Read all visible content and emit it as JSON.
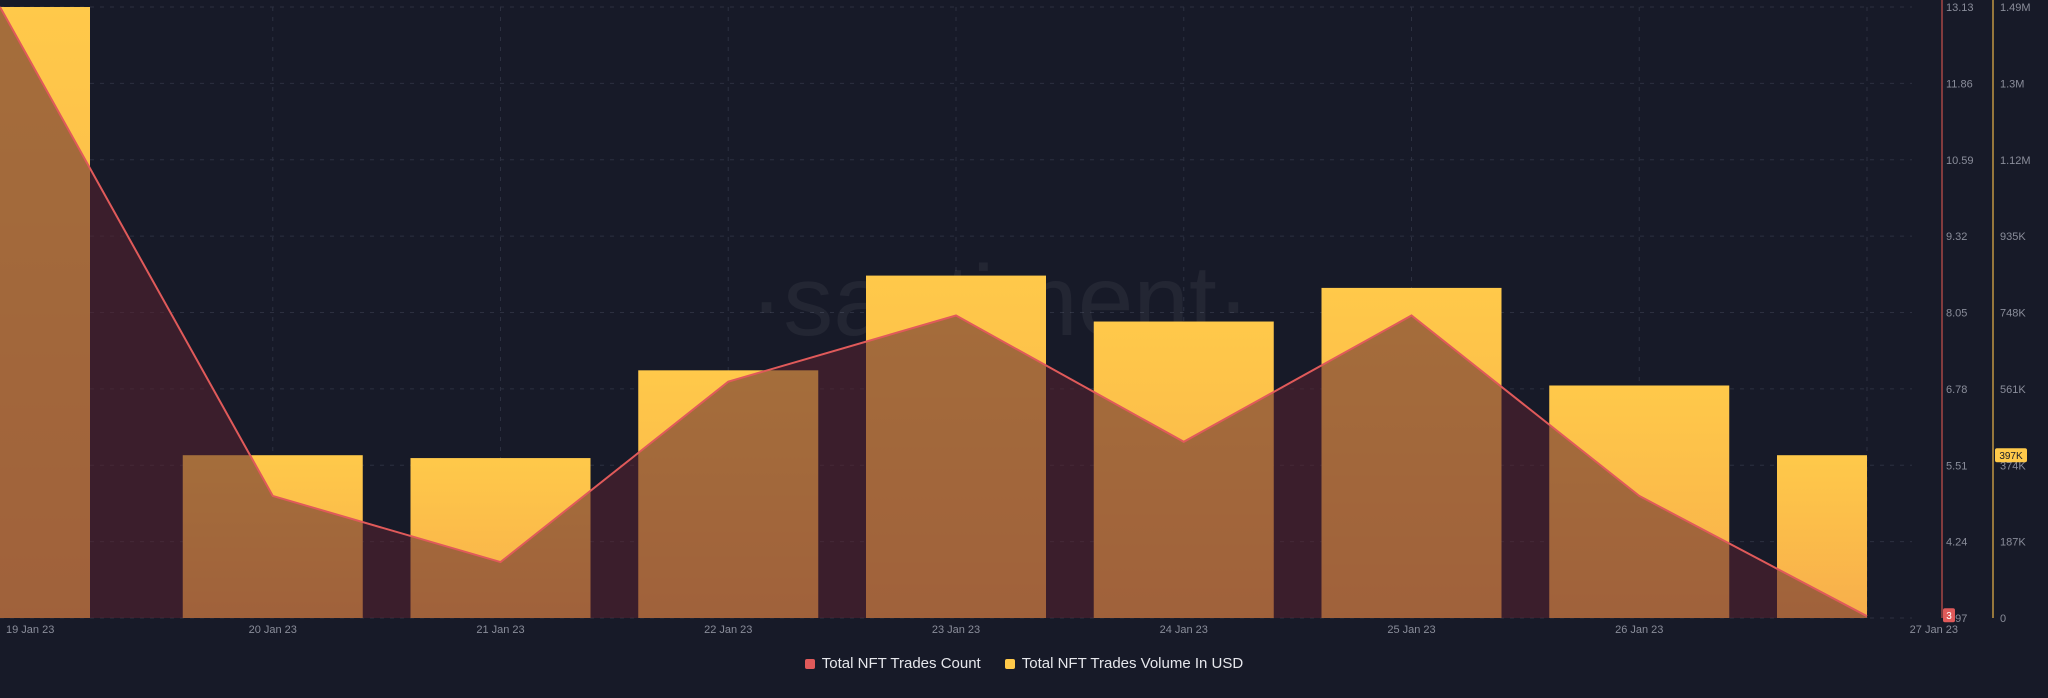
{
  "brand": {
    "watermark": "·santiment·"
  },
  "chart_data": {
    "type": "bar",
    "categories": [
      "19 Jan 23",
      "20 Jan 23",
      "21 Jan 23",
      "22 Jan 23",
      "23 Jan 23",
      "24 Jan 23",
      "25 Jan 23",
      "26 Jan 23",
      "27 Jan 23"
    ],
    "series": [
      {
        "name": "Total NFT Trades Count",
        "type": "area-line",
        "axis": "left",
        "color": "#e05a5a",
        "values": [
          13.13,
          5.0,
          3.9,
          6.9,
          8.0,
          5.9,
          8.0,
          5.0,
          3.0
        ]
      },
      {
        "name": "Total NFT Trades Volume In USD",
        "type": "bar",
        "axis": "right",
        "color": "#ffc94a",
        "values": [
          1490000,
          397000,
          390000,
          604000,
          835000,
          723000,
          805000,
          567000,
          397000
        ]
      }
    ],
    "y_left": {
      "ticks": [
        "13.13",
        "11.86",
        "10.59",
        "9.32",
        "8.05",
        "6.78",
        "5.51",
        "4.24",
        "2.97"
      ],
      "range": [
        2.97,
        13.13
      ],
      "current_marker": "3"
    },
    "y_right": {
      "ticks": [
        "1.49M",
        "1.3M",
        "1.12M",
        "935K",
        "748K",
        "561K",
        "374K",
        "187K",
        "0"
      ],
      "range": [
        0,
        1490000
      ],
      "current_marker": "397K"
    },
    "grid": true,
    "legend_position": "bottom-center"
  },
  "colors": {
    "background": "#171a28",
    "bar": "#ffc94a",
    "bar_shade": "#f7ae4b",
    "line": "#e05a5a",
    "area": "#3a2230",
    "axis_left": "#c9524c",
    "axis_right": "#e9b54a",
    "label": "#8a8d9a",
    "grid": "#2c3040"
  }
}
